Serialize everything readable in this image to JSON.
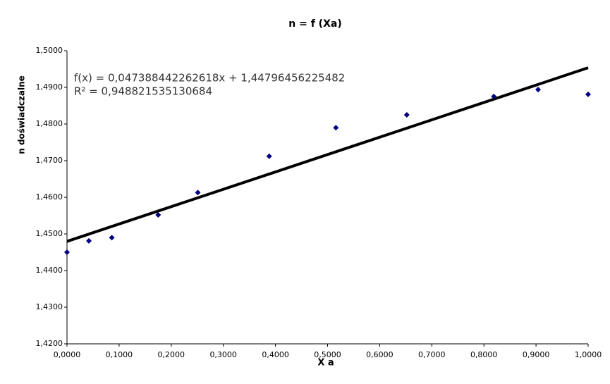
{
  "chart_data": {
    "type": "scatter",
    "title": "n = f (Xa)",
    "x_label": "X a",
    "y_label": "n doświadczalne",
    "series": [
      {
        "name": null,
        "color": "#000080",
        "x": [
          0.0,
          0.042,
          0.086,
          0.175,
          0.251,
          0.388,
          0.516,
          0.652,
          0.819,
          0.904,
          1.0
        ],
        "values": [
          1.445,
          1.4481,
          1.449,
          1.4552,
          1.4613,
          1.4712,
          1.479,
          1.4825,
          1.4875,
          1.4894,
          1.4881
        ]
      }
    ],
    "trendline": {
      "slope": 0.047388442262618,
      "intercept": 1.44796456225482,
      "color": "#000000",
      "labels": [
        "f(x) = 0,047388442262618x + 1,44796456225482",
        "R² = 0,948821535130684"
      ]
    },
    "xlim": [
      0,
      1
    ],
    "ylim": [
      1.42,
      1.5
    ],
    "xticks": [
      {
        "value": 0,
        "label": "0,0000"
      },
      {
        "value": 0.1,
        "label": "0,1000"
      },
      {
        "value": 0.2,
        "label": "0,2000"
      },
      {
        "value": 0.3,
        "label": "0,3000"
      },
      {
        "value": 0.4,
        "label": "0,4000"
      },
      {
        "value": 0.5,
        "label": "0,5000"
      },
      {
        "value": 0.6,
        "label": "0,6000"
      },
      {
        "value": 0.7,
        "label": "0,7000"
      },
      {
        "value": 0.8,
        "label": "0,8000"
      },
      {
        "value": 0.9,
        "label": "0,9000"
      },
      {
        "value": 1,
        "label": "1,0000"
      }
    ],
    "yticks": [
      {
        "value": 1.42,
        "label": "1,4200"
      },
      {
        "value": 1.43,
        "label": "1,4300"
      },
      {
        "value": 1.44,
        "label": "1,4400"
      },
      {
        "value": 1.45,
        "label": "1,4500"
      },
      {
        "value": 1.46,
        "label": "1,4600"
      },
      {
        "value": 1.47,
        "label": "1,4700"
      },
      {
        "value": 1.48,
        "label": "1,4800"
      },
      {
        "value": 1.49,
        "label": "1,4900"
      },
      {
        "value": 1.5,
        "label": "1,5000"
      }
    ],
    "grid": false
  }
}
